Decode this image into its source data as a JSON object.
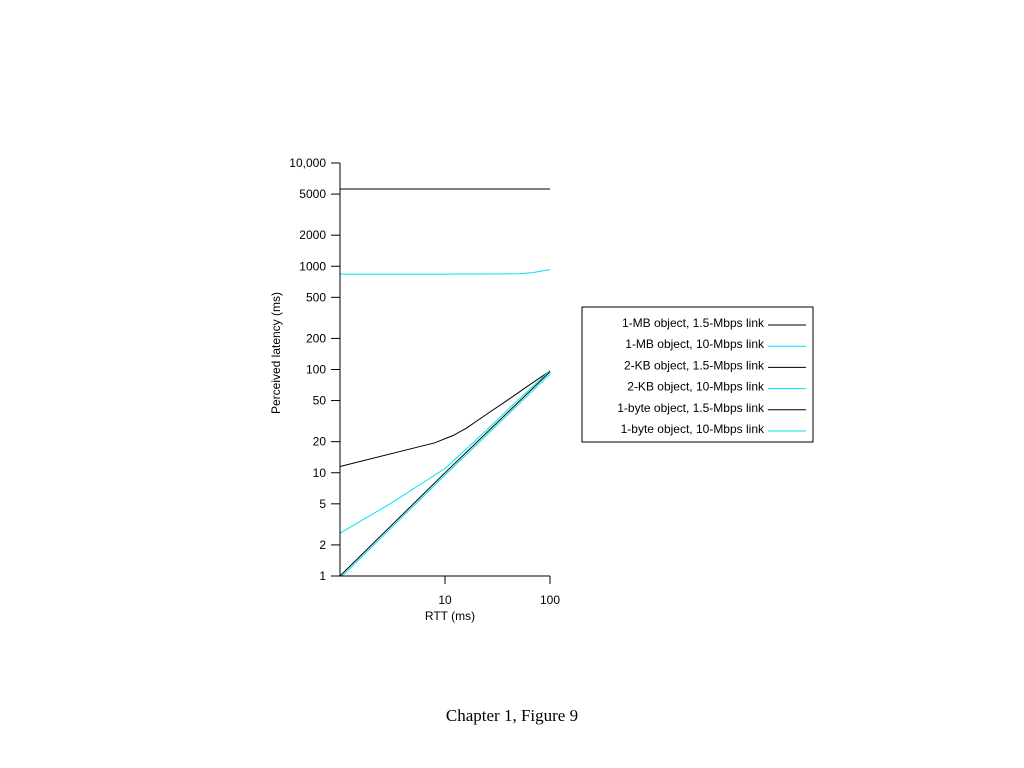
{
  "caption": "Chapter 1, Figure 9",
  "chart_data": {
    "type": "line",
    "xlabel": "RTT (ms)",
    "ylabel": "Perceived latency (ms)",
    "x_scale": "log",
    "y_scale": "log",
    "xlim": [
      1,
      100
    ],
    "ylim": [
      1,
      10000
    ],
    "x_ticks": [
      {
        "value": 10,
        "label": "10"
      },
      {
        "value": 100,
        "label": "100"
      }
    ],
    "y_ticks": [
      {
        "value": 1,
        "label": "1"
      },
      {
        "value": 2,
        "label": "2"
      },
      {
        "value": 5,
        "label": "5"
      },
      {
        "value": 10,
        "label": "10"
      },
      {
        "value": 20,
        "label": "20"
      },
      {
        "value": 50,
        "label": "50"
      },
      {
        "value": 100,
        "label": "100"
      },
      {
        "value": 200,
        "label": "200"
      },
      {
        "value": 500,
        "label": "500"
      },
      {
        "value": 1000,
        "label": "1000"
      },
      {
        "value": 2000,
        "label": "2000"
      },
      {
        "value": 5000,
        "label": "5000"
      },
      {
        "value": 10000,
        "label": "10,000"
      }
    ],
    "grid": false,
    "legend_position": "right",
    "series": [
      {
        "name": "1-MB object, 1.5-Mbps link",
        "color": "#000000",
        "points": [
          [
            1,
            5600
          ],
          [
            100,
            5600
          ]
        ]
      },
      {
        "name": "1-MB object, 10-Mbps link",
        "color": "#00e5ee",
        "points": [
          [
            1,
            840
          ],
          [
            10,
            840
          ],
          [
            50,
            845
          ],
          [
            70,
            870
          ],
          [
            100,
            930
          ]
        ]
      },
      {
        "name": "2-KB object, 1.5-Mbps link",
        "color": "#000000",
        "points": [
          [
            1,
            11.5
          ],
          [
            8,
            19.5
          ],
          [
            12,
            23
          ],
          [
            16,
            27
          ],
          [
            25,
            37
          ],
          [
            40,
            51
          ],
          [
            60,
            68
          ],
          [
            100,
            97
          ]
        ]
      },
      {
        "name": "2-KB object, 10-Mbps link",
        "color": "#00e5ee",
        "points": [
          [
            1,
            2.6
          ],
          [
            3,
            5
          ],
          [
            10,
            11
          ],
          [
            20,
            21
          ],
          [
            50,
            51
          ],
          [
            100,
            98
          ]
        ]
      },
      {
        "name": "1-byte object, 1.5-Mbps link",
        "color": "#000000",
        "points": [
          [
            1,
            1
          ],
          [
            10,
            10
          ],
          [
            100,
            95
          ]
        ]
      },
      {
        "name": "1-byte object, 10-Mbps link",
        "color": "#00e5ee",
        "points": [
          [
            1.05,
            1
          ],
          [
            10,
            9.5
          ],
          [
            100,
            90
          ]
        ]
      }
    ]
  }
}
